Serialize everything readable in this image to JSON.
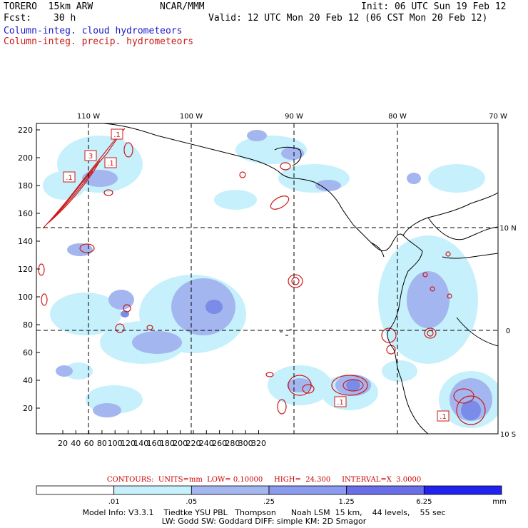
{
  "header": {
    "title_left": "TORERO  15km ARW",
    "center": "NCAR/MMM",
    "init": "Init: 06 UTC Sun 19 Feb 12",
    "fcst_label": "Fcst:",
    "fcst_value": "30 h",
    "valid": "Valid: 12 UTC Mon 20 Feb 12 (06 CST Mon 20 Feb 12)",
    "field1": "Column-integ. cloud hydrometeors",
    "field2": "Column-integ. precip. hydrometeors"
  },
  "map": {
    "x_ticks": [
      "20",
      "40",
      "60",
      "80",
      "100",
      "120",
      "140",
      "160",
      "180",
      "200",
      "220",
      "240",
      "260",
      "280",
      "300",
      "320"
    ],
    "y_ticks": [
      "20",
      "40",
      "60",
      "80",
      "100",
      "120",
      "140",
      "160",
      "180",
      "200",
      "220"
    ],
    "lon_labels": [
      "110 W",
      "100 W",
      "90 W",
      "80 W",
      "70 W"
    ],
    "lat_labels": [
      "10 N",
      "0",
      "10 S"
    ],
    "box_labels": [
      ".1",
      "3",
      ".1",
      ".1",
      ".1",
      ".1"
    ]
  },
  "colors": {
    "cloud_light": "#c6f0fb",
    "cloud_med": "#a4b6ef",
    "cloud_dark": "#7a8be8",
    "contour": "#cc1a1a",
    "coast": "#000000"
  },
  "footer": {
    "contours": "CONTOURS:  UNITS=mm  LOW= 0.10000     HIGH=  24.300     INTERVAL=X  3.0000",
    "scale_labels": [
      ".01",
      ".05",
      ".25",
      "1.25",
      "6.25"
    ],
    "scale_unit": "mm",
    "scale_colors": [
      "#ffffff",
      "#c6f0fb",
      "#a4b6ef",
      "#8a9aee",
      "#6a6ee8",
      "#2222f0"
    ],
    "model_info_1": "Model Info: V3.3.1    Tiedtke YSU PBL   Thompson      Noah LSM  15 km,    44 levels,    55 sec",
    "model_info_2": "LW: Godd SW: Goddard DIFF: simple KM: 2D Smagor"
  }
}
